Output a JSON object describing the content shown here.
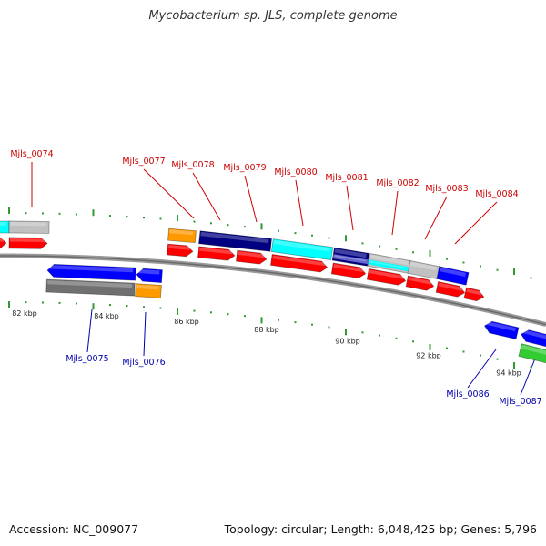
{
  "title": "Mycobacterium sp. JLS, complete genome",
  "footer": {
    "accession": "Accession: NC_009077",
    "summary": "Topology: circular; Length: 6,048,425 bp; Genes: 5,796"
  },
  "colors": {
    "forward_label": "#cc0000",
    "reverse_label": "#0000aa",
    "backbone": "#808080",
    "tick": "#339933",
    "cds": "#ff0000",
    "orange": "#ff9900",
    "navy": "#000080",
    "cyan": "#00ffff",
    "grey": "#c0c0c0",
    "darkgrey": "#707070",
    "blue": "#0000ff",
    "green": "#33cc33",
    "slate": "#6666cc"
  },
  "scale": {
    "ticks": [
      "82 kbp",
      "84 kbp",
      "86 kbp",
      "88 kbp",
      "90 kbp",
      "92 kbp",
      "94 kbp"
    ]
  },
  "forward_labels": [
    "Mjls_0074",
    "Mjls_0077",
    "Mjls_0078",
    "Mjls_0079",
    "Mjls_0080",
    "Mjls_0081",
    "Mjls_0082",
    "Mjls_0083",
    "Mjls_0084"
  ],
  "reverse_labels": [
    "Mjls_0075",
    "Mjls_0076",
    "Mjls_0086",
    "Mjls_0087"
  ]
}
